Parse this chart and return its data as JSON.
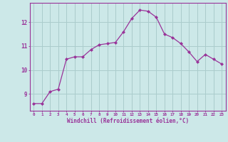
{
  "x": [
    0,
    1,
    2,
    3,
    4,
    5,
    6,
    7,
    8,
    9,
    10,
    11,
    12,
    13,
    14,
    15,
    16,
    17,
    18,
    19,
    20,
    21,
    22,
    23
  ],
  "y": [
    8.6,
    8.6,
    9.1,
    9.2,
    10.45,
    10.55,
    10.55,
    10.85,
    11.05,
    11.1,
    11.15,
    11.6,
    12.15,
    12.5,
    12.45,
    12.2,
    11.5,
    11.35,
    11.1,
    10.75,
    10.35,
    10.65,
    10.45,
    10.25
  ],
  "line_color": "#993399",
  "marker": "D",
  "marker_size": 2.0,
  "bg_color": "#cce8e8",
  "grid_color": "#aacccc",
  "xlabel": "Windchill (Refroidissement éolien,°C)",
  "xlabel_color": "#993399",
  "tick_color": "#993399",
  "ylabel_ticks": [
    9,
    10,
    11,
    12
  ],
  "xlim": [
    -0.5,
    23.5
  ],
  "ylim": [
    8.3,
    12.8
  ],
  "figsize": [
    3.2,
    2.0
  ],
  "dpi": 100
}
